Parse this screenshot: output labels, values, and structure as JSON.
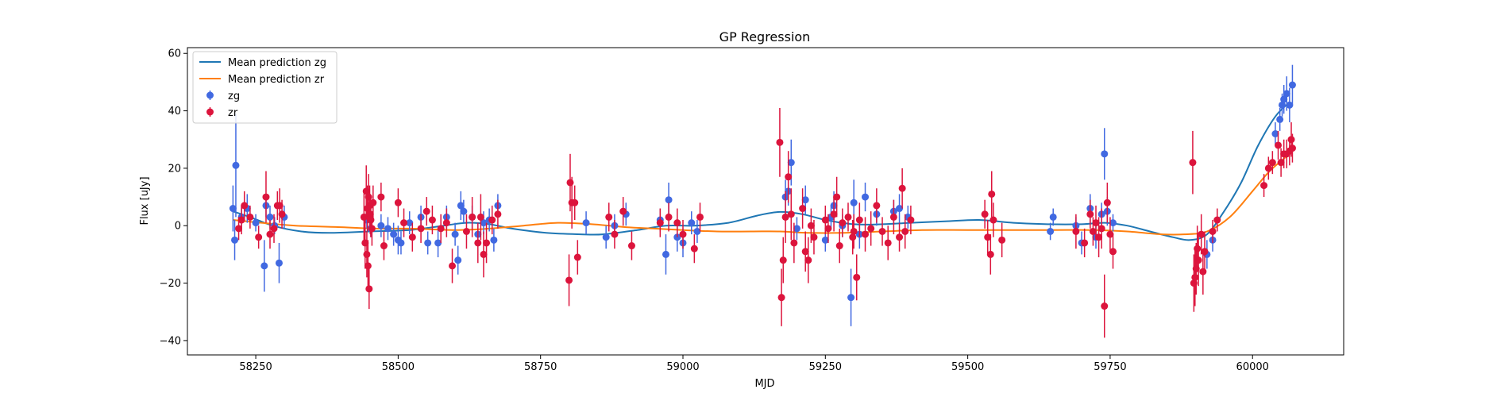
{
  "chart_data": {
    "type": "scatter",
    "title": "GP Regression",
    "xlabel": "MJD",
    "ylabel": "Flux [uJy]",
    "xlim": [
      58130,
      60160
    ],
    "ylim": [
      -45,
      62
    ],
    "xticks": [
      58250,
      58500,
      58750,
      59000,
      59250,
      59500,
      59750,
      60000
    ],
    "yticks": [
      -40,
      -20,
      0,
      20,
      40,
      60
    ],
    "grid": false,
    "legend_position": "top-left",
    "colors": {
      "mean_zg": "#1f77b4",
      "mean_zr": "#ff7f0e",
      "zg": "#4169e1",
      "zr": "#dc143c"
    },
    "lines": [
      {
        "name": "Mean prediction zg",
        "color": "#1f77b4",
        "x": [
          58210,
          58240,
          58280,
          58330,
          58380,
          58450,
          58520,
          58580,
          58620,
          58660,
          58700,
          58760,
          58820,
          58860,
          58920,
          58970,
          59020,
          59080,
          59130,
          59170,
          59210,
          59250,
          59300,
          59350,
          59400,
          59460,
          59520,
          59580,
          59640,
          59700,
          59740,
          59780,
          59820,
          59860,
          59890,
          59920,
          59950,
          59980,
          60010,
          60040,
          60065
        ],
        "y": [
          5,
          3,
          0,
          -2,
          -2.5,
          -2,
          -1.5,
          0,
          1,
          0.5,
          -1,
          -2.5,
          -3,
          -3,
          -1.5,
          0,
          0,
          1,
          3.5,
          4.8,
          4,
          2,
          0.5,
          0.5,
          1,
          1.5,
          2,
          1,
          0.5,
          0.5,
          1,
          0,
          -2,
          -4,
          -5,
          -3,
          5,
          15,
          28,
          38,
          43
        ]
      },
      {
        "name": "Mean prediction zr",
        "color": "#ff7f0e",
        "x": [
          58210,
          58260,
          58320,
          58400,
          58460,
          58520,
          58600,
          58660,
          58720,
          58780,
          58840,
          58900,
          58950,
          59000,
          59060,
          59120,
          59170,
          59220,
          59280,
          59350,
          59420,
          59500,
          59580,
          59650,
          59720,
          59780,
          59840,
          59880,
          59920,
          59960,
          60000,
          60030,
          60065
        ],
        "y": [
          2,
          1,
          0,
          -0.5,
          -1,
          -1,
          -1.5,
          -1,
          0,
          1,
          0.5,
          -0.5,
          -1,
          -1.5,
          -2,
          -2,
          -2,
          -2.5,
          -2.5,
          -2,
          -1.5,
          -1.5,
          -1.5,
          -1.5,
          -1.5,
          -2,
          -3,
          -3,
          -2,
          3,
          12,
          19,
          25
        ]
      }
    ],
    "series": [
      {
        "name": "zg",
        "color": "#4169e1",
        "points": [
          [
            58210,
            6,
            8
          ],
          [
            58213,
            -5,
            7
          ],
          [
            58215,
            21,
            18
          ],
          [
            58225,
            3,
            4
          ],
          [
            58235,
            6,
            5
          ],
          [
            58250,
            1,
            3
          ],
          [
            58265,
            -14,
            9
          ],
          [
            58268,
            7,
            4
          ],
          [
            58275,
            3,
            4
          ],
          [
            58283,
            0,
            3
          ],
          [
            58291,
            -13,
            7
          ],
          [
            58300,
            3,
            4
          ],
          [
            58445,
            2,
            3
          ],
          [
            58452,
            -1,
            3
          ],
          [
            58470,
            0,
            4
          ],
          [
            58482,
            -1,
            4
          ],
          [
            58492,
            -3,
            4
          ],
          [
            58500,
            -5,
            5
          ],
          [
            58505,
            -6,
            4
          ],
          [
            58520,
            1,
            4
          ],
          [
            58540,
            3,
            4
          ],
          [
            58552,
            -6,
            4
          ],
          [
            58570,
            -6,
            5
          ],
          [
            58585,
            3,
            4
          ],
          [
            58600,
            -3,
            4
          ],
          [
            58605,
            -12,
            5
          ],
          [
            58610,
            7,
            5
          ],
          [
            58615,
            5,
            4
          ],
          [
            58630,
            3,
            4
          ],
          [
            58640,
            -3,
            4
          ],
          [
            58650,
            1,
            4
          ],
          [
            58660,
            2,
            4
          ],
          [
            58668,
            -5,
            4
          ],
          [
            58675,
            7,
            4
          ],
          [
            58830,
            1,
            4
          ],
          [
            58865,
            -4,
            4
          ],
          [
            58880,
            0,
            4
          ],
          [
            58900,
            4,
            4
          ],
          [
            58960,
            2,
            4
          ],
          [
            58970,
            -10,
            7
          ],
          [
            58975,
            9,
            6
          ],
          [
            58990,
            -4,
            5
          ],
          [
            59000,
            -6,
            5
          ],
          [
            59015,
            1,
            4
          ],
          [
            59025,
            -2,
            4
          ],
          [
            59180,
            10,
            6
          ],
          [
            59185,
            12,
            5
          ],
          [
            59190,
            22,
            8
          ],
          [
            59200,
            -1,
            4
          ],
          [
            59215,
            9,
            5
          ],
          [
            59250,
            -5,
            4
          ],
          [
            59260,
            3,
            4
          ],
          [
            59265,
            7,
            5
          ],
          [
            59280,
            0,
            4
          ],
          [
            59295,
            -25,
            10
          ],
          [
            59300,
            8,
            8
          ],
          [
            59310,
            -3,
            5
          ],
          [
            59320,
            10,
            5
          ],
          [
            59340,
            4,
            4
          ],
          [
            59370,
            5,
            4
          ],
          [
            59380,
            6,
            5
          ],
          [
            59395,
            3,
            4
          ],
          [
            59645,
            -2,
            3
          ],
          [
            59650,
            3,
            3
          ],
          [
            59690,
            0,
            3
          ],
          [
            59700,
            -6,
            4
          ],
          [
            59715,
            6,
            5
          ],
          [
            59725,
            -4,
            4
          ],
          [
            59735,
            4,
            4
          ],
          [
            59740,
            25,
            9
          ],
          [
            59745,
            5,
            5
          ],
          [
            59755,
            1,
            3
          ],
          [
            59920,
            -10,
            5
          ],
          [
            59930,
            -5,
            4
          ],
          [
            60040,
            32,
            4
          ],
          [
            60048,
            37,
            4
          ],
          [
            60052,
            42,
            4
          ],
          [
            60055,
            44,
            5
          ],
          [
            60060,
            46,
            6
          ],
          [
            60065,
            42,
            6
          ],
          [
            60070,
            49,
            7
          ]
        ]
      },
      {
        "name": "zr",
        "color": "#dc143c",
        "points": [
          [
            58220,
            -1,
            4
          ],
          [
            58225,
            2,
            5
          ],
          [
            58230,
            7,
            5
          ],
          [
            58240,
            3,
            4
          ],
          [
            58255,
            -4,
            4
          ],
          [
            58268,
            10,
            9
          ],
          [
            58275,
            -3,
            5
          ],
          [
            58282,
            -1,
            5
          ],
          [
            58288,
            7,
            5
          ],
          [
            58292,
            7,
            6
          ],
          [
            58296,
            4,
            5
          ],
          [
            58440,
            3,
            9
          ],
          [
            58442,
            -6,
            9
          ],
          [
            58444,
            12,
            9
          ],
          [
            58445,
            -10,
            8
          ],
          [
            58446,
            6,
            8
          ],
          [
            58447,
            -14,
            9
          ],
          [
            58448,
            10,
            8
          ],
          [
            58449,
            -22,
            7
          ],
          [
            58450,
            7,
            7
          ],
          [
            58451,
            4,
            7
          ],
          [
            58452,
            2,
            6
          ],
          [
            58454,
            -1,
            6
          ],
          [
            58456,
            8,
            6
          ],
          [
            58470,
            10,
            5
          ],
          [
            58475,
            -7,
            5
          ],
          [
            58500,
            8,
            5
          ],
          [
            58510,
            1,
            5
          ],
          [
            58525,
            -4,
            5
          ],
          [
            58540,
            -1,
            5
          ],
          [
            58550,
            5,
            5
          ],
          [
            58560,
            2,
            5
          ],
          [
            58575,
            -1,
            5
          ],
          [
            58585,
            1,
            5
          ],
          [
            58595,
            -14,
            6
          ],
          [
            58620,
            -2,
            6
          ],
          [
            58630,
            3,
            7
          ],
          [
            58640,
            -6,
            7
          ],
          [
            58645,
            3,
            8
          ],
          [
            58650,
            -10,
            8
          ],
          [
            58655,
            -6,
            7
          ],
          [
            58665,
            2,
            5
          ],
          [
            58675,
            4,
            5
          ],
          [
            58800,
            -19,
            9
          ],
          [
            58802,
            15,
            10
          ],
          [
            58805,
            8,
            9
          ],
          [
            58810,
            8,
            6
          ],
          [
            58815,
            -11,
            6
          ],
          [
            58870,
            3,
            5
          ],
          [
            58880,
            -3,
            5
          ],
          [
            58895,
            5,
            5
          ],
          [
            58910,
            -7,
            5
          ],
          [
            58960,
            1,
            5
          ],
          [
            58975,
            3,
            5
          ],
          [
            58990,
            1,
            5
          ],
          [
            59000,
            -3,
            5
          ],
          [
            59020,
            -8,
            5
          ],
          [
            59030,
            3,
            5
          ],
          [
            59170,
            29,
            12
          ],
          [
            59173,
            -25,
            10
          ],
          [
            59176,
            -12,
            8
          ],
          [
            59180,
            3,
            9
          ],
          [
            59185,
            17,
            9
          ],
          [
            59190,
            4,
            9
          ],
          [
            59195,
            -6,
            7
          ],
          [
            59210,
            6,
            7
          ],
          [
            59215,
            -9,
            7
          ],
          [
            59220,
            -12,
            8
          ],
          [
            59225,
            0,
            6
          ],
          [
            59230,
            -4,
            6
          ],
          [
            59250,
            2,
            5
          ],
          [
            59255,
            -1,
            5
          ],
          [
            59265,
            4,
            6
          ],
          [
            59270,
            10,
            7
          ],
          [
            59275,
            -7,
            6
          ],
          [
            59280,
            1,
            5
          ],
          [
            59290,
            3,
            5
          ],
          [
            59298,
            -4,
            6
          ],
          [
            59300,
            -2,
            6
          ],
          [
            59305,
            -18,
            8
          ],
          [
            59310,
            2,
            6
          ],
          [
            59320,
            -3,
            6
          ],
          [
            59330,
            -1,
            6
          ],
          [
            59340,
            7,
            6
          ],
          [
            59350,
            -2,
            5
          ],
          [
            59360,
            -6,
            6
          ],
          [
            59370,
            3,
            6
          ],
          [
            59380,
            -4,
            5
          ],
          [
            59385,
            13,
            7
          ],
          [
            59390,
            -2,
            6
          ],
          [
            59400,
            2,
            5
          ],
          [
            59530,
            4,
            5
          ],
          [
            59535,
            -4,
            6
          ],
          [
            59540,
            -10,
            7
          ],
          [
            59542,
            11,
            8
          ],
          [
            59545,
            2,
            6
          ],
          [
            59560,
            -5,
            6
          ],
          [
            59690,
            -2,
            6
          ],
          [
            59705,
            -6,
            5
          ],
          [
            59715,
            4,
            5
          ],
          [
            59720,
            -2,
            5
          ],
          [
            59725,
            1,
            6
          ],
          [
            59730,
            -4,
            7
          ],
          [
            59735,
            -1,
            7
          ],
          [
            59740,
            -28,
            11
          ],
          [
            59745,
            8,
            7
          ],
          [
            59750,
            -3,
            6
          ],
          [
            59755,
            -9,
            6
          ],
          [
            59895,
            22,
            11
          ],
          [
            59897,
            -20,
            10
          ],
          [
            59899,
            -18,
            10
          ],
          [
            59901,
            -15,
            9
          ],
          [
            59903,
            -8,
            8
          ],
          [
            59905,
            -12,
            9
          ],
          [
            59910,
            -3,
            7
          ],
          [
            59913,
            -16,
            8
          ],
          [
            59916,
            -9,
            7
          ],
          [
            59930,
            -2,
            4
          ],
          [
            59938,
            2,
            4
          ],
          [
            60020,
            14,
            4
          ],
          [
            60028,
            20,
            4
          ],
          [
            60035,
            22,
            4
          ],
          [
            60045,
            28,
            5
          ],
          [
            60050,
            22,
            5
          ],
          [
            60055,
            25,
            5
          ],
          [
            60060,
            25,
            5
          ],
          [
            60065,
            26,
            5
          ],
          [
            60068,
            30,
            6
          ],
          [
            60070,
            27,
            5
          ]
        ]
      }
    ]
  }
}
